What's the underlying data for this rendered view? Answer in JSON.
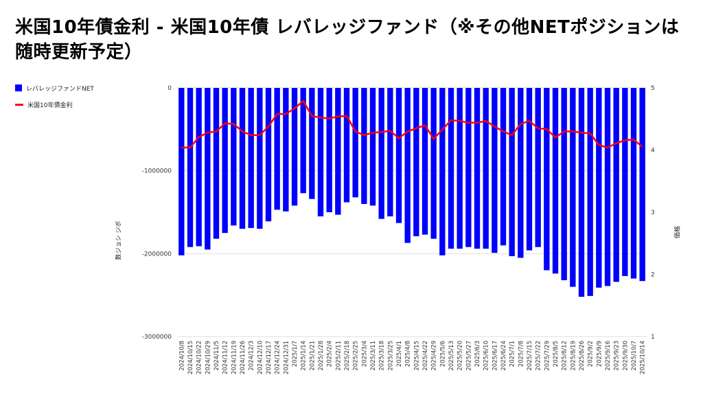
{
  "title": "米国10年債金利 - 米国10年債 レバレッジファンド（※その他NETポジションは随時更新予定）",
  "colors": {
    "bar": "#0000ff",
    "line": "#ff0000",
    "grid": "#dddddd",
    "text": "#333333"
  },
  "chart_data": {
    "type": "bar+line",
    "x": [
      "2024/10/8",
      "2024/10/15",
      "2024/10/22",
      "2024/10/29",
      "2024/11/5",
      "2024/11/12",
      "2024/11/19",
      "2024/11/26",
      "2024/12/3",
      "2024/12/10",
      "2024/12/17",
      "2024/12/24",
      "2024/12/31",
      "2025/1/7",
      "2025/1/14",
      "2025/1/21",
      "2025/1/28",
      "2025/2/4",
      "2025/2/11",
      "2025/2/18",
      "2025/2/25",
      "2025/3/4",
      "2025/3/11",
      "2025/3/18",
      "2025/3/25",
      "2025/4/1",
      "2025/4/8",
      "2025/4/15",
      "2025/4/22",
      "2025/4/29",
      "2025/5/6",
      "2025/5/13",
      "2025/5/20",
      "2025/5/27",
      "2025/6/3",
      "2025/6/10",
      "2025/6/17",
      "2025/6/24",
      "2025/7/1",
      "2025/7/8",
      "2025/7/15",
      "2025/7/22",
      "2025/7/29",
      "2025/8/5",
      "2025/8/12",
      "2025/8/19",
      "2025/8/26",
      "2025/9/2",
      "2025/9/9",
      "2025/9/16",
      "2025/9/23",
      "2025/9/30",
      "2025/10/7",
      "2025/10/14"
    ],
    "series": [
      {
        "name": "レバレッジファンドNET",
        "axis": "left",
        "values": [
          -2020000,
          -1920000,
          -1910000,
          -1950000,
          -1820000,
          -1750000,
          -1660000,
          -1700000,
          -1690000,
          -1700000,
          -1610000,
          -1470000,
          -1490000,
          -1420000,
          -1270000,
          -1340000,
          -1550000,
          -1500000,
          -1530000,
          -1380000,
          -1320000,
          -1400000,
          -1420000,
          -1580000,
          -1550000,
          -1630000,
          -1870000,
          -1790000,
          -1770000,
          -1820000,
          -2020000,
          -1940000,
          -1940000,
          -1920000,
          -1940000,
          -1940000,
          -1990000,
          -1900000,
          -2030000,
          -2050000,
          -1960000,
          -1920000,
          -2200000,
          -2240000,
          -2320000,
          -2400000,
          -2520000,
          -2510000,
          -2410000,
          -2390000,
          -2340000,
          -2270000,
          -2300000,
          -2330000
        ]
      },
      {
        "name": "米国10年債金利",
        "axis": "right",
        "values": [
          4.04,
          4.04,
          4.21,
          4.28,
          4.3,
          4.43,
          4.42,
          4.3,
          4.24,
          4.24,
          4.38,
          4.58,
          4.58,
          4.67,
          4.79,
          4.55,
          4.52,
          4.51,
          4.54,
          4.55,
          4.3,
          4.24,
          4.28,
          4.29,
          4.31,
          4.19,
          4.3,
          4.35,
          4.4,
          4.18,
          4.33,
          4.48,
          4.47,
          4.44,
          4.44,
          4.47,
          4.38,
          4.3,
          4.24,
          4.42,
          4.47,
          4.35,
          4.34,
          4.2,
          4.3,
          4.3,
          4.28,
          4.27,
          4.08,
          4.04,
          4.11,
          4.16,
          4.17,
          4.05
        ]
      }
    ],
    "left_axis": {
      "label": "数ジョシ ジポ",
      "ylim": [
        -3000000,
        0
      ],
      "ticks": [
        0,
        -1000000,
        -2000000,
        -3000000
      ],
      "tick_labels": [
        "0",
        "-1000000",
        "-2000000",
        "-3000000"
      ]
    },
    "right_axis": {
      "label": "価格",
      "ylim": [
        1,
        5
      ],
      "ticks": [
        5,
        4,
        3,
        2,
        1
      ],
      "tick_labels": [
        "5",
        "4",
        "3",
        "2",
        "1"
      ]
    },
    "grid": true,
    "legend_position": "top-left"
  }
}
